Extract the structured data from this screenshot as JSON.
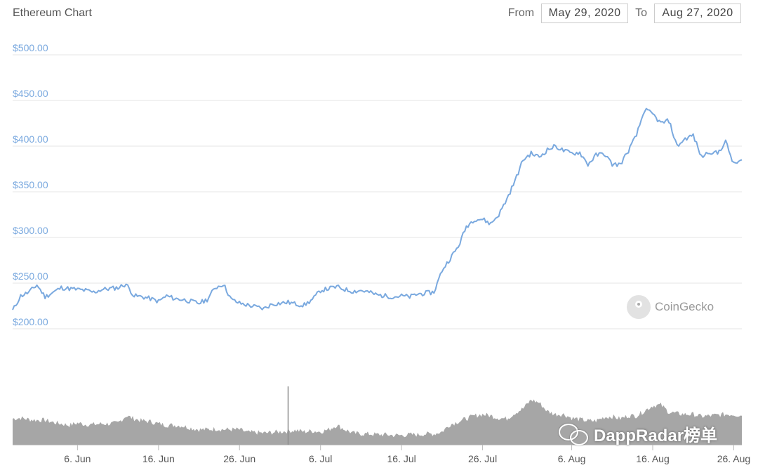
{
  "header": {
    "title": "Ethereum Chart",
    "from_label": "From",
    "from_value": "May 29, 2020",
    "to_label": "To",
    "to_value": "Aug 27, 2020"
  },
  "watermarks": {
    "coingecko": "CoinGecko",
    "dappradar": "DappRadar榜单"
  },
  "colors": {
    "price_line": "#7aa9df",
    "volume_fill": "#a6a6a6",
    "grid": "#e6e6e6",
    "ytick": "#7aa9df"
  },
  "chart_data": {
    "type": "line",
    "title": "Ethereum Chart",
    "ylim": [
      200,
      500
    ],
    "yticks": [
      200,
      250,
      300,
      350,
      400,
      450,
      500
    ],
    "ytick_labels": [
      "$200.00",
      "$250.00",
      "$300.00",
      "$350.00",
      "$400.00",
      "$450.00",
      "$500.00"
    ],
    "xlim": [
      "2020-05-29",
      "2020-08-27"
    ],
    "xticks": [
      "2020-06-06",
      "2020-06-16",
      "2020-06-26",
      "2020-07-06",
      "2020-07-16",
      "2020-07-26",
      "2020-08-06",
      "2020-08-16",
      "2020-08-26"
    ],
    "xtick_labels": [
      "6. Jun",
      "16. Jun",
      "26. Jun",
      "6. Jul",
      "16. Jul",
      "26. Jul",
      "6. Aug",
      "16. Aug",
      "26. Aug"
    ],
    "grid": true,
    "series": [
      {
        "values_kind": "price",
        "x": [
          "2020-05-29",
          "2020-05-30",
          "2020-05-31",
          "2020-06-01",
          "2020-06-02",
          "2020-06-03",
          "2020-06-04",
          "2020-06-05",
          "2020-06-06",
          "2020-06-07",
          "2020-06-08",
          "2020-06-09",
          "2020-06-10",
          "2020-06-11",
          "2020-06-12",
          "2020-06-13",
          "2020-06-14",
          "2020-06-15",
          "2020-06-16",
          "2020-06-17",
          "2020-06-18",
          "2020-06-19",
          "2020-06-20",
          "2020-06-21",
          "2020-06-22",
          "2020-06-23",
          "2020-06-24",
          "2020-06-25",
          "2020-06-26",
          "2020-06-27",
          "2020-06-28",
          "2020-06-29",
          "2020-06-30",
          "2020-07-01",
          "2020-07-02",
          "2020-07-03",
          "2020-07-04",
          "2020-07-05",
          "2020-07-06",
          "2020-07-07",
          "2020-07-08",
          "2020-07-09",
          "2020-07-10",
          "2020-07-11",
          "2020-07-12",
          "2020-07-13",
          "2020-07-14",
          "2020-07-15",
          "2020-07-16",
          "2020-07-17",
          "2020-07-18",
          "2020-07-19",
          "2020-07-20",
          "2020-07-21",
          "2020-07-22",
          "2020-07-23",
          "2020-07-24",
          "2020-07-25",
          "2020-07-26",
          "2020-07-27",
          "2020-07-28",
          "2020-07-29",
          "2020-07-30",
          "2020-07-31",
          "2020-08-01",
          "2020-08-02",
          "2020-08-03",
          "2020-08-04",
          "2020-08-05",
          "2020-08-06",
          "2020-08-07",
          "2020-08-08",
          "2020-08-09",
          "2020-08-10",
          "2020-08-11",
          "2020-08-12",
          "2020-08-13",
          "2020-08-14",
          "2020-08-15",
          "2020-08-16",
          "2020-08-17",
          "2020-08-18",
          "2020-08-19",
          "2020-08-20",
          "2020-08-21",
          "2020-08-22",
          "2020-08-23",
          "2020-08-24",
          "2020-08-25",
          "2020-08-26",
          "2020-08-27"
        ],
        "values": [
          220,
          236,
          240,
          248,
          235,
          240,
          245,
          244,
          243,
          242,
          240,
          243,
          244,
          245,
          249,
          236,
          235,
          233,
          230,
          236,
          233,
          232,
          230,
          228,
          232,
          245,
          249,
          232,
          228,
          226,
          224,
          222,
          227,
          228,
          229,
          227,
          226,
          232,
          242,
          244,
          246,
          243,
          241,
          242,
          240,
          237,
          236,
          235,
          236,
          235,
          238,
          239,
          240,
          264,
          277,
          290,
          312,
          320,
          320,
          315,
          325,
          342,
          362,
          385,
          392,
          388,
          396,
          400,
          395,
          392,
          393,
          380,
          390,
          392,
          380,
          380,
          395,
          412,
          440,
          435,
          425,
          428,
          400,
          408,
          412,
          388,
          394,
          392,
          405,
          380,
          385
        ]
      }
    ],
    "volume": {
      "ylim": [
        0,
        100
      ],
      "values": [
        36,
        37,
        35,
        34,
        34,
        31,
        29,
        27,
        30,
        28,
        28,
        29,
        29,
        30,
        40,
        36,
        33,
        32,
        29,
        27,
        27,
        26,
        23,
        21,
        21,
        22,
        21,
        21,
        21,
        17,
        17,
        16,
        17,
        18,
        19,
        20,
        18,
        19,
        18,
        21,
        27,
        21,
        16,
        15,
        15,
        14,
        14,
        13,
        13,
        14,
        14,
        15,
        15,
        18,
        28,
        32,
        36,
        40,
        42,
        40,
        37,
        36,
        44,
        50,
        62,
        58,
        46,
        42,
        42,
        37,
        35,
        33,
        33,
        38,
        39,
        36,
        40,
        40,
        47,
        54,
        55,
        45,
        43,
        42,
        42,
        39,
        40,
        41,
        42,
        42,
        40
      ]
    }
  }
}
